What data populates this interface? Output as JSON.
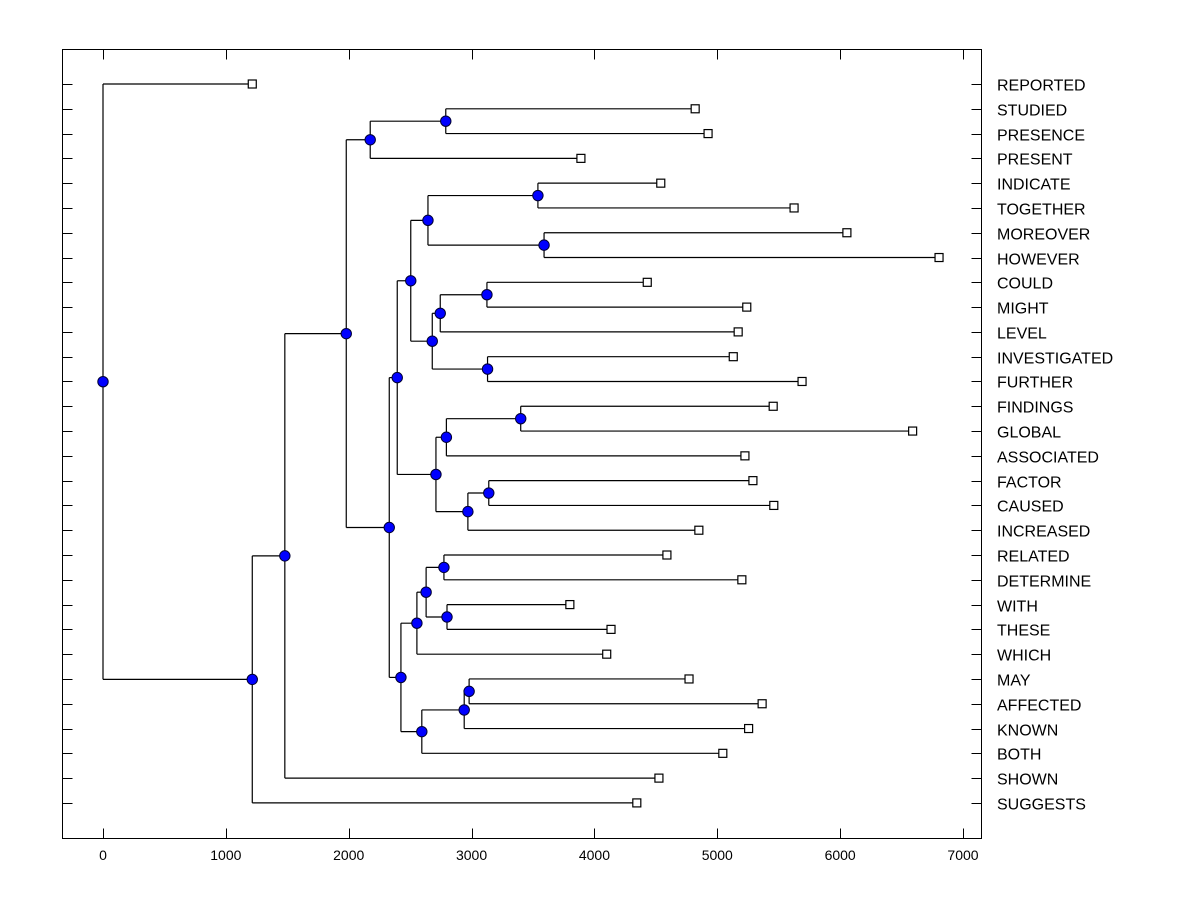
{
  "chart_data": {
    "type": "dendrogram",
    "title": "",
    "xlabel": "",
    "ylabel": "",
    "xlim": [
      -330,
      7150
    ],
    "xticks": [
      0,
      1000,
      2000,
      3000,
      4000,
      5000,
      6000,
      7000
    ],
    "xtick_labels": [
      "0",
      "1000",
      "2000",
      "3000",
      "4000",
      "5000",
      "6000",
      "7000"
    ],
    "grid": false,
    "leaf_marker": "open-square",
    "node_marker": "filled-circle",
    "node_color": "#0000ff",
    "line_color": "#000000",
    "leaves": [
      {
        "label": "REPORTED",
        "value": 1215
      },
      {
        "label": "STUDIED",
        "value": 4820
      },
      {
        "label": "PRESENCE",
        "value": 4925
      },
      {
        "label": "PRESENT",
        "value": 3890
      },
      {
        "label": "INDICATE",
        "value": 4540
      },
      {
        "label": "TOGETHER",
        "value": 5625
      },
      {
        "label": "MOREOVER",
        "value": 6055
      },
      {
        "label": "HOWEVER",
        "value": 6805
      },
      {
        "label": "COULD",
        "value": 4430
      },
      {
        "label": "MIGHT",
        "value": 5240
      },
      {
        "label": "LEVEL",
        "value": 5170
      },
      {
        "label": "INVESTIGATED",
        "value": 5130
      },
      {
        "label": "FURTHER",
        "value": 5690
      },
      {
        "label": "FINDINGS",
        "value": 5455
      },
      {
        "label": "GLOBAL",
        "value": 6590
      },
      {
        "label": "ASSOCIATED",
        "value": 5225
      },
      {
        "label": "FACTOR",
        "value": 5290
      },
      {
        "label": "CAUSED",
        "value": 5460
      },
      {
        "label": "INCREASED",
        "value": 4850
      },
      {
        "label": "RELATED",
        "value": 4590
      },
      {
        "label": "DETERMINE",
        "value": 5200
      },
      {
        "label": "WITH",
        "value": 3800
      },
      {
        "label": "THESE",
        "value": 4135
      },
      {
        "label": "WHICH",
        "value": 4100
      },
      {
        "label": "MAY",
        "value": 4770
      },
      {
        "label": "AFFECTED",
        "value": 5365
      },
      {
        "label": "KNOWN",
        "value": 5255
      },
      {
        "label": "BOTH",
        "value": 5045
      },
      {
        "label": "SHOWN",
        "value": 4525
      },
      {
        "label": "SUGGESTS",
        "value": 4345
      }
    ],
    "tree": {
      "id": "root",
      "value": 0,
      "children": [
        {
          "leaf": 0
        },
        {
          "id": "n-a",
          "value": 1215,
          "children": [
            {
              "id": "n-b",
              "value": 1480,
              "children": [
                {
                  "id": "n-c",
                  "value": 1980,
                  "children": [
                    {
                      "id": "n-d",
                      "value": 2175,
                      "children": [
                        {
                          "id": "n-f",
                          "value": 2790,
                          "children": [
                            {
                              "leaf": 1
                            },
                            {
                              "leaf": 2
                            }
                          ]
                        },
                        {
                          "leaf": 3
                        }
                      ]
                    },
                    {
                      "id": "n-e",
                      "value": 2330,
                      "children": [
                        {
                          "id": "n-g",
                          "value": 2395,
                          "children": [
                            {
                              "id": "n-i",
                              "value": 2505,
                              "children": [
                                {
                                  "id": "n-k",
                                  "value": 2645,
                                  "children": [
                                    {
                                      "id": "n-k1",
                                      "value": 3540,
                                      "children": [
                                        {
                                          "leaf": 4
                                        },
                                        {
                                          "leaf": 5
                                        }
                                      ]
                                    },
                                    {
                                      "id": "n-k2",
                                      "value": 3590,
                                      "children": [
                                        {
                                          "leaf": 6
                                        },
                                        {
                                          "leaf": 7
                                        }
                                      ]
                                    }
                                  ]
                                },
                                {
                                  "id": "n-l",
                                  "value": 2680,
                                  "children": [
                                    {
                                      "id": "n-m",
                                      "value": 2745,
                                      "children": [
                                        {
                                          "id": "n-m1",
                                          "value": 3125,
                                          "children": [
                                            {
                                              "leaf": 8
                                            },
                                            {
                                              "leaf": 9
                                            }
                                          ]
                                        },
                                        {
                                          "leaf": 10
                                        }
                                      ]
                                    },
                                    {
                                      "id": "n-n",
                                      "value": 3130,
                                      "children": [
                                        {
                                          "leaf": 11
                                        },
                                        {
                                          "leaf": 12
                                        }
                                      ]
                                    }
                                  ]
                                }
                              ]
                            },
                            {
                              "id": "n-j",
                              "value": 2710,
                              "children": [
                                {
                                  "id": "n-o",
                                  "value": 2795,
                                  "children": [
                                    {
                                      "id": "n-o1",
                                      "value": 3400,
                                      "children": [
                                        {
                                          "leaf": 13
                                        },
                                        {
                                          "leaf": 14
                                        }
                                      ]
                                    },
                                    {
                                      "leaf": 15
                                    }
                                  ]
                                },
                                {
                                  "id": "n-p",
                                  "value": 2970,
                                  "children": [
                                    {
                                      "id": "n-p1",
                                      "value": 3140,
                                      "children": [
                                        {
                                          "leaf": 16
                                        },
                                        {
                                          "leaf": 17
                                        }
                                      ]
                                    },
                                    {
                                      "leaf": 18
                                    }
                                  ]
                                }
                              ]
                            }
                          ]
                        },
                        {
                          "id": "n-h",
                          "value": 2425,
                          "children": [
                            {
                              "id": "n-q",
                              "value": 2555,
                              "children": [
                                {
                                  "id": "n-s",
                                  "value": 2630,
                                  "children": [
                                    {
                                      "id": "n-s1",
                                      "value": 2775,
                                      "children": [
                                        {
                                          "leaf": 19
                                        },
                                        {
                                          "leaf": 20
                                        }
                                      ]
                                    },
                                    {
                                      "id": "n-s2",
                                      "value": 2800,
                                      "children": [
                                        {
                                          "leaf": 21
                                        },
                                        {
                                          "leaf": 22
                                        }
                                      ]
                                    }
                                  ]
                                },
                                {
                                  "leaf": 23
                                }
                              ]
                            },
                            {
                              "id": "n-r",
                              "value": 2595,
                              "children": [
                                {
                                  "id": "n-t",
                                  "value": 2940,
                                  "children": [
                                    {
                                      "id": "n-t1",
                                      "value": 2980,
                                      "children": [
                                        {
                                          "leaf": 24
                                        },
                                        {
                                          "leaf": 25
                                        }
                                      ]
                                    },
                                    {
                                      "leaf": 26
                                    }
                                  ]
                                },
                                {
                                  "leaf": 27
                                }
                              ]
                            }
                          ]
                        }
                      ]
                    }
                  ]
                },
                {
                  "leaf": 28
                }
              ]
            },
            {
              "leaf": 29
            }
          ]
        }
      ]
    }
  }
}
